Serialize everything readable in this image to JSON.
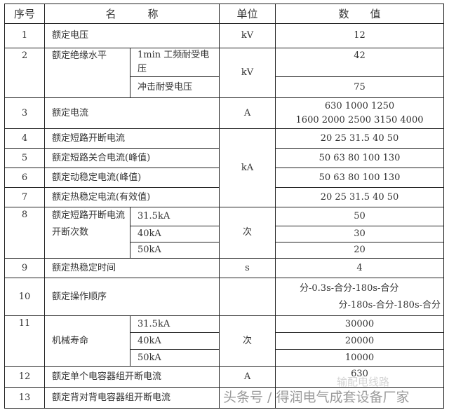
{
  "header": {
    "no": "序号",
    "name": "名　　　称",
    "unit": "单位",
    "value": "数　　值"
  },
  "rows": {
    "r1": {
      "no": "1",
      "name": "额定电压",
      "unit": "kV",
      "value": "12"
    },
    "r2": {
      "no": "2",
      "name": "额定绝缘水平",
      "sub1": "1min 工频耐受电压",
      "val1": "42",
      "sub2": "冲击耐受电压",
      "val2": "75",
      "unit": "kV"
    },
    "r3": {
      "no": "3",
      "name": "额定电流",
      "unit": "A",
      "value1": "630 1000 1250",
      "value2": "1600 2000 2500 3150 4000"
    },
    "r4": {
      "no": "4",
      "name": "额定短路开断电流",
      "value": "20 25 31.5 40 50"
    },
    "r5": {
      "no": "5",
      "name": "额定短路关合电流(峰值)",
      "value": "50 63 80 100 130"
    },
    "r6": {
      "no": "6",
      "name": "额定动稳定电流(峰值)",
      "value": "50 63 80 100 130"
    },
    "r7": {
      "no": "7",
      "name": "额定热稳定电流(有效值)",
      "value": "20 25 31.5 40 50"
    },
    "r4_7_unit": "kA",
    "r8": {
      "no": "8",
      "name": "额定短路开断电流开断次数",
      "unit": "次",
      "subs": [
        {
          "label": "31.5kA",
          "value": "50"
        },
        {
          "label": "40kA",
          "value": "30"
        },
        {
          "label": "50kA",
          "value": "20"
        }
      ]
    },
    "r9": {
      "no": "9",
      "name": "额定热稳定时间",
      "unit": "s",
      "value": "4"
    },
    "r10": {
      "no": "10",
      "name": "额定操作顺序",
      "value1": "分-0.3s-合分-180s-合分",
      "value2": "分-180s-合分-180s-合分"
    },
    "r11": {
      "no": "11",
      "name": "机械寿命",
      "unit": "次",
      "subs": [
        {
          "label": "31.5kA",
          "value": "30000"
        },
        {
          "label": "40kA",
          "value": "20000"
        },
        {
          "label": "50kA",
          "value": "10000"
        }
      ]
    },
    "r12": {
      "no": "12",
      "name": "额定单个电容器组开断电流",
      "unit": "A",
      "value": "630"
    },
    "r13": {
      "no": "13",
      "name": "额定背对背电容器组开断电流"
    }
  },
  "watermark": {
    "main": "头条号 / 得润电气成套设备厂家",
    "faint": "输配电线路"
  }
}
